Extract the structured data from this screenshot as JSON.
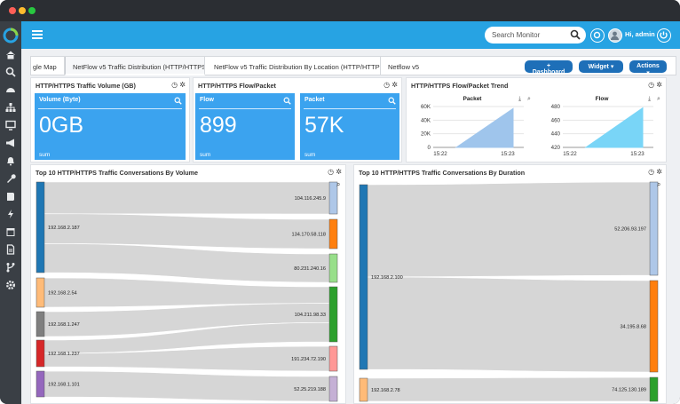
{
  "window": {
    "traffic_lights": [
      "#ff5f57",
      "#febc2e",
      "#28c840"
    ]
  },
  "sidebar": {
    "icons": [
      "home-icon",
      "search-icon",
      "dashboard-icon",
      "network-icon",
      "monitor-icon",
      "megaphone-icon",
      "bell-icon",
      "wrench-icon",
      "book-icon",
      "bolt-icon",
      "calendar-icon",
      "report-icon",
      "fork-icon",
      "gear-icon"
    ]
  },
  "topbar": {
    "search_placeholder": "Search Monitor",
    "user_label": "Hi, admin"
  },
  "tabs": [
    {
      "label": "gle Map"
    },
    {
      "label": "NetFlow v5 Traffic Distribution (HTTP/HTTPS)"
    },
    {
      "label": "NetFlow v5 Traffic Distribution By Location (HTTP/HTTPS)"
    },
    {
      "label": "Netflow v5"
    }
  ],
  "header_buttons": {
    "dashboard": "+ Dashboard",
    "widget": "Widget ▾",
    "actions": "Actions ▾"
  },
  "panels": {
    "volume": {
      "title": "HTTP/HTTPS Traffic Volume (GB)",
      "kpi": {
        "label": "Volume (Byte)",
        "value": "0GB",
        "footer": "sum"
      }
    },
    "flow_packet": {
      "title": "HTTP/HTTPS Flow/Packet",
      "flow": {
        "label": "Flow",
        "value": "899",
        "footer": "sum"
      },
      "packet": {
        "label": "Packet",
        "value": "57K",
        "footer": "sum"
      }
    },
    "trend": {
      "title": "HTTP/HTTPS Flow/Packet Trend"
    },
    "conv_volume": {
      "title": "Top 10 HTTP/HTTPS Traffic Conversations By Volume"
    },
    "conv_duration": {
      "title": "Top 10 HTTP/HTTPS Traffic Conversations By Duration"
    }
  },
  "chart_data": [
    {
      "type": "area",
      "title": "Packet",
      "x_ticks": [
        "15:22",
        "15:23"
      ],
      "y_ticks": [
        "60K",
        "40K",
        "20K",
        "0"
      ],
      "ylim": [
        0,
        60000
      ],
      "series": [
        {
          "values": [
            0,
            57000
          ]
        }
      ],
      "color": "#9fc5ec"
    },
    {
      "type": "area",
      "title": "Flow",
      "x_ticks": [
        "15:22",
        "15:23"
      ],
      "y_ticks": [
        "480",
        "460",
        "440",
        "420"
      ],
      "ylim": [
        420,
        480
      ],
      "series": [
        {
          "values": [
            420,
            478
          ]
        }
      ],
      "color": "#79d5f7"
    },
    {
      "type": "sankey",
      "sources": [
        {
          "label": "192.168.2.187",
          "color": "#1f77b4"
        },
        {
          "label": "192.168.2.54",
          "color": "#ffbb78"
        },
        {
          "label": "192.168.1.247",
          "color": "#7f7f7f"
        },
        {
          "label": "192.168.1.237",
          "color": "#d62728"
        },
        {
          "label": "192.168.1.101",
          "color": "#9467bd"
        }
      ],
      "targets": [
        {
          "label": "104.116.245.9",
          "color": "#aec7e8"
        },
        {
          "label": "134.170.58.118",
          "color": "#ff7f0e"
        },
        {
          "label": "80.231.240.16",
          "color": "#98df8a"
        },
        {
          "label": "104.211.98.33",
          "color": "#2ca02c"
        },
        {
          "label": "191.234.72.190",
          "color": "#ff9896"
        },
        {
          "label": "52.25.219.188",
          "color": "#c5b0d5"
        }
      ]
    },
    {
      "type": "sankey",
      "sources": [
        {
          "label": "192.168.2.100",
          "color": "#1f77b4"
        },
        {
          "label": "192.168.2.78",
          "color": "#ffbb78"
        }
      ],
      "targets": [
        {
          "label": "52.206.93.197",
          "color": "#aec7e8"
        },
        {
          "label": "34.195.8.68",
          "color": "#ff7f0e"
        },
        {
          "label": "74.125.130.189",
          "color": "#2ca02c"
        }
      ]
    }
  ]
}
